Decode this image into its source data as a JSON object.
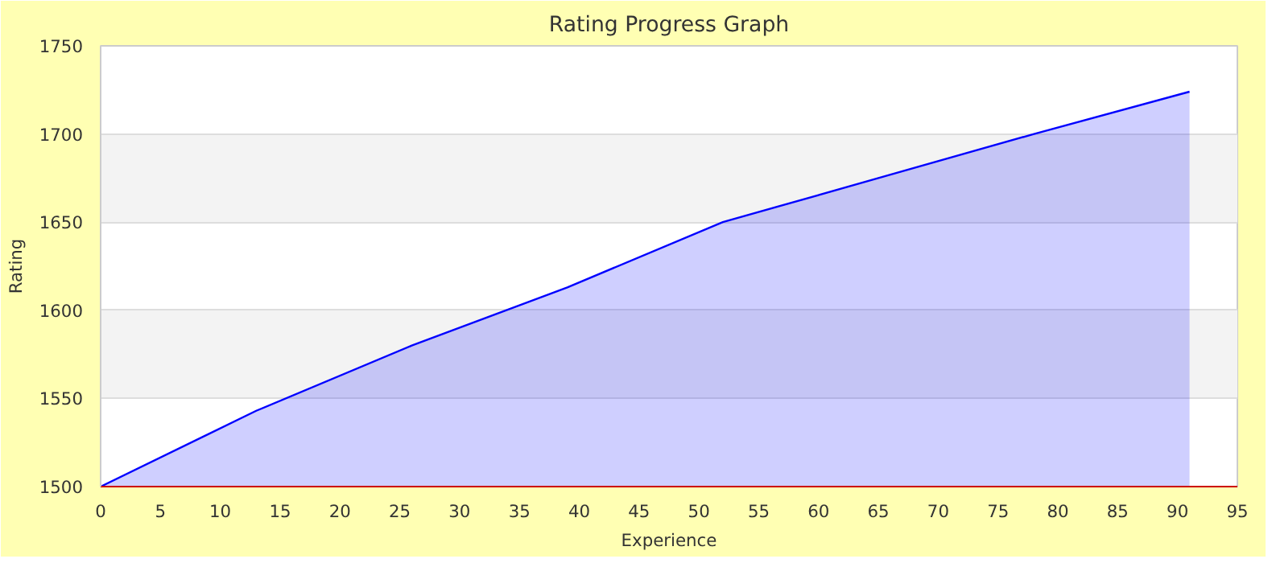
{
  "chart_data": {
    "type": "area",
    "title": "Rating Progress Graph",
    "xlabel": "Experience",
    "ylabel": "Rating",
    "x": [
      0,
      13,
      26,
      39,
      52,
      65,
      78,
      91
    ],
    "series": [
      {
        "color": "#0000ff",
        "values": [
          1500,
          1543,
          1580,
          1613,
          1650,
          1675,
          1700,
          1724
        ]
      }
    ],
    "xlim": [
      0,
      95
    ],
    "xticks": [
      0,
      5,
      10,
      15,
      20,
      25,
      30,
      35,
      40,
      45,
      50,
      55,
      60,
      65,
      70,
      75,
      80,
      85,
      90,
      95
    ],
    "ylim": [
      1500,
      1750
    ],
    "yticks": [
      1500,
      1550,
      1600,
      1650,
      1700,
      1750
    ],
    "grid": "y"
  }
}
